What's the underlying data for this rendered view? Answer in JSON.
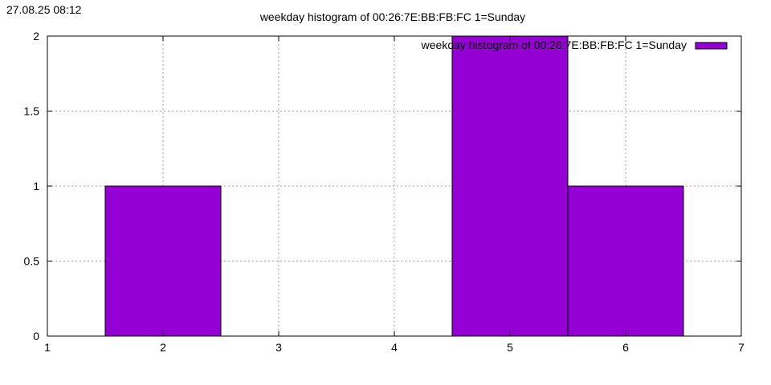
{
  "timestamp": "27.08.25 08:12",
  "chart_data": {
    "type": "bar",
    "title": "weekday histogram of 00:26:7E:BB:FB:FC 1=Sunday",
    "xlabel": "",
    "ylabel": "",
    "x": [
      2,
      5,
      6
    ],
    "values": [
      1,
      2,
      1
    ],
    "bar_width": 1,
    "xlim": [
      1,
      7
    ],
    "ylim": [
      0,
      2
    ],
    "x_ticks": [
      "1",
      "2",
      "3",
      "4",
      "5",
      "6",
      "7"
    ],
    "y_ticks": [
      "0",
      "0.5",
      "1",
      "1.5",
      "2"
    ],
    "grid": true,
    "legend": "top-right",
    "series": [
      {
        "name": "weekday histogram of 00:26:7E:BB:FB:FC 1=Sunday",
        "color": "#9400D3"
      }
    ]
  }
}
